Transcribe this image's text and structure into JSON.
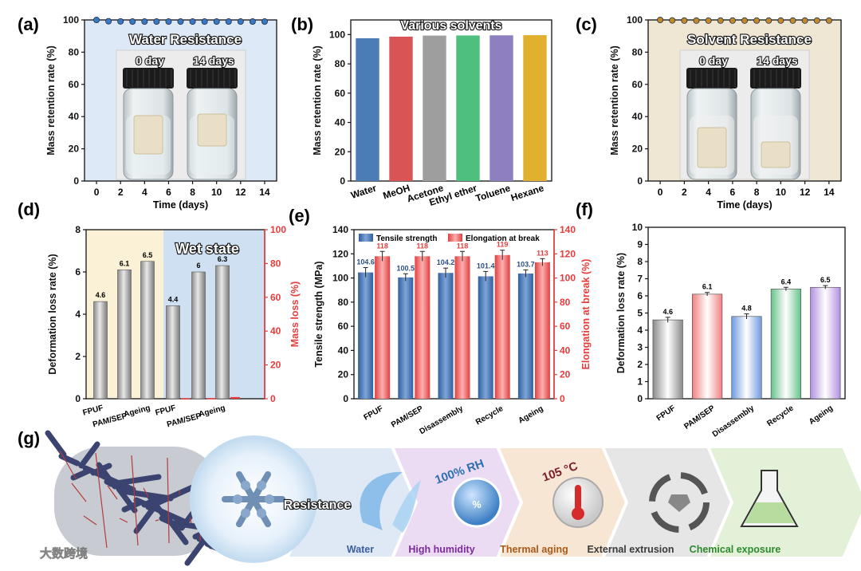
{
  "panels": {
    "a": "(a)",
    "b": "(b)",
    "c": "(c)",
    "d": "(d)",
    "e": "(e)",
    "f": "(f)",
    "g": "(g)"
  },
  "colors": {
    "water_bg": "#dde9f7",
    "solvent_bg": "#efe6d3",
    "water_marker": "#3a78c2",
    "solvent_marker": "#c4882a",
    "d_left_bg": "#fbf1d6",
    "d_right_bg": "#cfe0f2",
    "tensile": "#3c6fb0",
    "elongation": "#ef4b4b",
    "red_axis": "#e83c3c"
  },
  "photos": {
    "a_day0": "0 day",
    "a_day14": "14 days",
    "c_day0": "0 day",
    "c_day14": "14 days"
  },
  "chart_data": [
    {
      "id": "a",
      "type": "scatter",
      "title": "Water Resistance",
      "xlabel": "Time (days)",
      "ylabel": "Mass retention rate (%)",
      "xlim": [
        -1,
        15
      ],
      "ylim": [
        0,
        100
      ],
      "xticks": [
        0,
        2,
        4,
        6,
        8,
        10,
        12,
        14
      ],
      "yticks": [
        0,
        20,
        40,
        60,
        80,
        100
      ],
      "x": [
        0,
        1,
        2,
        3,
        4,
        5,
        6,
        7,
        8,
        9,
        10,
        11,
        12,
        13,
        14
      ],
      "y": [
        100,
        99.2,
        99.1,
        99.0,
        99.0,
        99.0,
        99.0,
        99.0,
        99.0,
        99.0,
        99.0,
        99.0,
        99.0,
        99.0,
        99.0
      ]
    },
    {
      "id": "b",
      "type": "bar",
      "title": "Various solvents",
      "ylabel": "Mass retention rate (%)",
      "ylim": [
        0,
        110
      ],
      "yticks": [
        0,
        20,
        40,
        60,
        80,
        100
      ],
      "categories": [
        "Water",
        "MeOH",
        "Acetone",
        "Ethyl ether",
        "Toluene",
        "Hexane"
      ],
      "values": [
        97.5,
        98.6,
        99.3,
        99.4,
        99.5,
        99.6
      ],
      "bar_colors": [
        "#4b7cb5",
        "#d95555",
        "#9e9e9e",
        "#4fbf7d",
        "#8e80c0",
        "#e0b02e"
      ]
    },
    {
      "id": "c",
      "type": "scatter",
      "title": "Solvent Resistance",
      "xlabel": "Time (days)",
      "ylabel": "Mass retention rate (%)",
      "xlim": [
        -1,
        15
      ],
      "ylim": [
        0,
        100
      ],
      "xticks": [
        0,
        2,
        4,
        6,
        8,
        10,
        12,
        14
      ],
      "yticks": [
        0,
        20,
        40,
        60,
        80,
        100
      ],
      "x": [
        0,
        1,
        2,
        3,
        4,
        5,
        6,
        7,
        8,
        9,
        10,
        11,
        12,
        13,
        14
      ],
      "y": [
        100,
        99.7,
        99.6,
        99.6,
        99.6,
        99.6,
        99.6,
        99.6,
        99.6,
        99.6,
        99.6,
        99.6,
        99.6,
        99.6,
        99.6
      ]
    },
    {
      "id": "d",
      "type": "bar",
      "annotation": "Wet state",
      "ylabel": "Deformation loss rate (%)",
      "ylabel_right": "Mass loss (%)",
      "ylim": [
        0,
        8
      ],
      "ylim_right": [
        0,
        100
      ],
      "yticks": [
        0,
        2,
        4,
        6,
        8
      ],
      "yticks_right": [
        0,
        20,
        40,
        60,
        80,
        100
      ],
      "categories": [
        "FPUF",
        "PAM/SEP",
        "Ageing",
        "FPUF",
        "PAM/SEP",
        "Ageing"
      ],
      "values": [
        4.6,
        6.1,
        6.5,
        4.4,
        6.0,
        6.3
      ],
      "labels": [
        "4.6",
        "6.1",
        "6.5",
        "4.4",
        "6",
        "6.3"
      ],
      "mass_loss": [
        0.3,
        0.4,
        1.0
      ]
    },
    {
      "id": "e",
      "type": "bar",
      "ylabel": "Tensile strength (MPa)",
      "ylabel_right": "Elongation at break (%)",
      "ylim": [
        0,
        140
      ],
      "ylim_right": [
        0,
        140
      ],
      "yticks": [
        0,
        20,
        40,
        60,
        80,
        100,
        120,
        140
      ],
      "categories": [
        "FPUF",
        "PAM/SEP",
        "Disassembly",
        "Recycle",
        "Ageing"
      ],
      "series": [
        {
          "name": "Tensile strength",
          "values": [
            104.6,
            100.5,
            104.2,
            101.4,
            103.7
          ],
          "labels": [
            "104.6",
            "100.5",
            "104.2",
            "101.4",
            "103.7"
          ],
          "err": [
            4,
            3,
            4,
            4,
            3
          ]
        },
        {
          "name": "Elongation at break",
          "values": [
            118,
            118,
            118,
            119,
            113
          ],
          "labels": [
            "118",
            "118",
            "118",
            "119",
            "113"
          ],
          "err": [
            4,
            4,
            4,
            4,
            3
          ]
        }
      ]
    },
    {
      "id": "f",
      "type": "bar",
      "ylabel": "Deformation loss rate (%)",
      "ylim": [
        0,
        10
      ],
      "yticks": [
        0,
        1,
        2,
        3,
        4,
        5,
        6,
        7,
        8,
        9,
        10
      ],
      "categories": [
        "FPUF",
        "PAM/SEP",
        "Disassembly",
        "Recycle",
        "Ageing"
      ],
      "values": [
        4.6,
        6.1,
        4.8,
        6.4,
        6.5
      ],
      "labels": [
        "4.6",
        "6.1",
        "4.8",
        "6.4",
        "6.5"
      ],
      "err": [
        0.15,
        0.1,
        0.15,
        0.1,
        0.1
      ],
      "bar_colors": [
        "#8a8a8a",
        "#f08080",
        "#6f9ae0",
        "#66c28a",
        "#b290e0"
      ]
    }
  ],
  "schematic": {
    "center_label": "Resistance",
    "humidity_badge": "100% RH",
    "temperature_badge": "105 °C",
    "labels": [
      "Water",
      "High humidity",
      "Thermal aging",
      "External extrusion",
      "Chemical exposure"
    ],
    "label_colors": [
      "#3b5f9a",
      "#7a2c9a",
      "#a85a1a",
      "#3a3a3a",
      "#2c8a2c"
    ],
    "watermark": "大数跨境"
  }
}
